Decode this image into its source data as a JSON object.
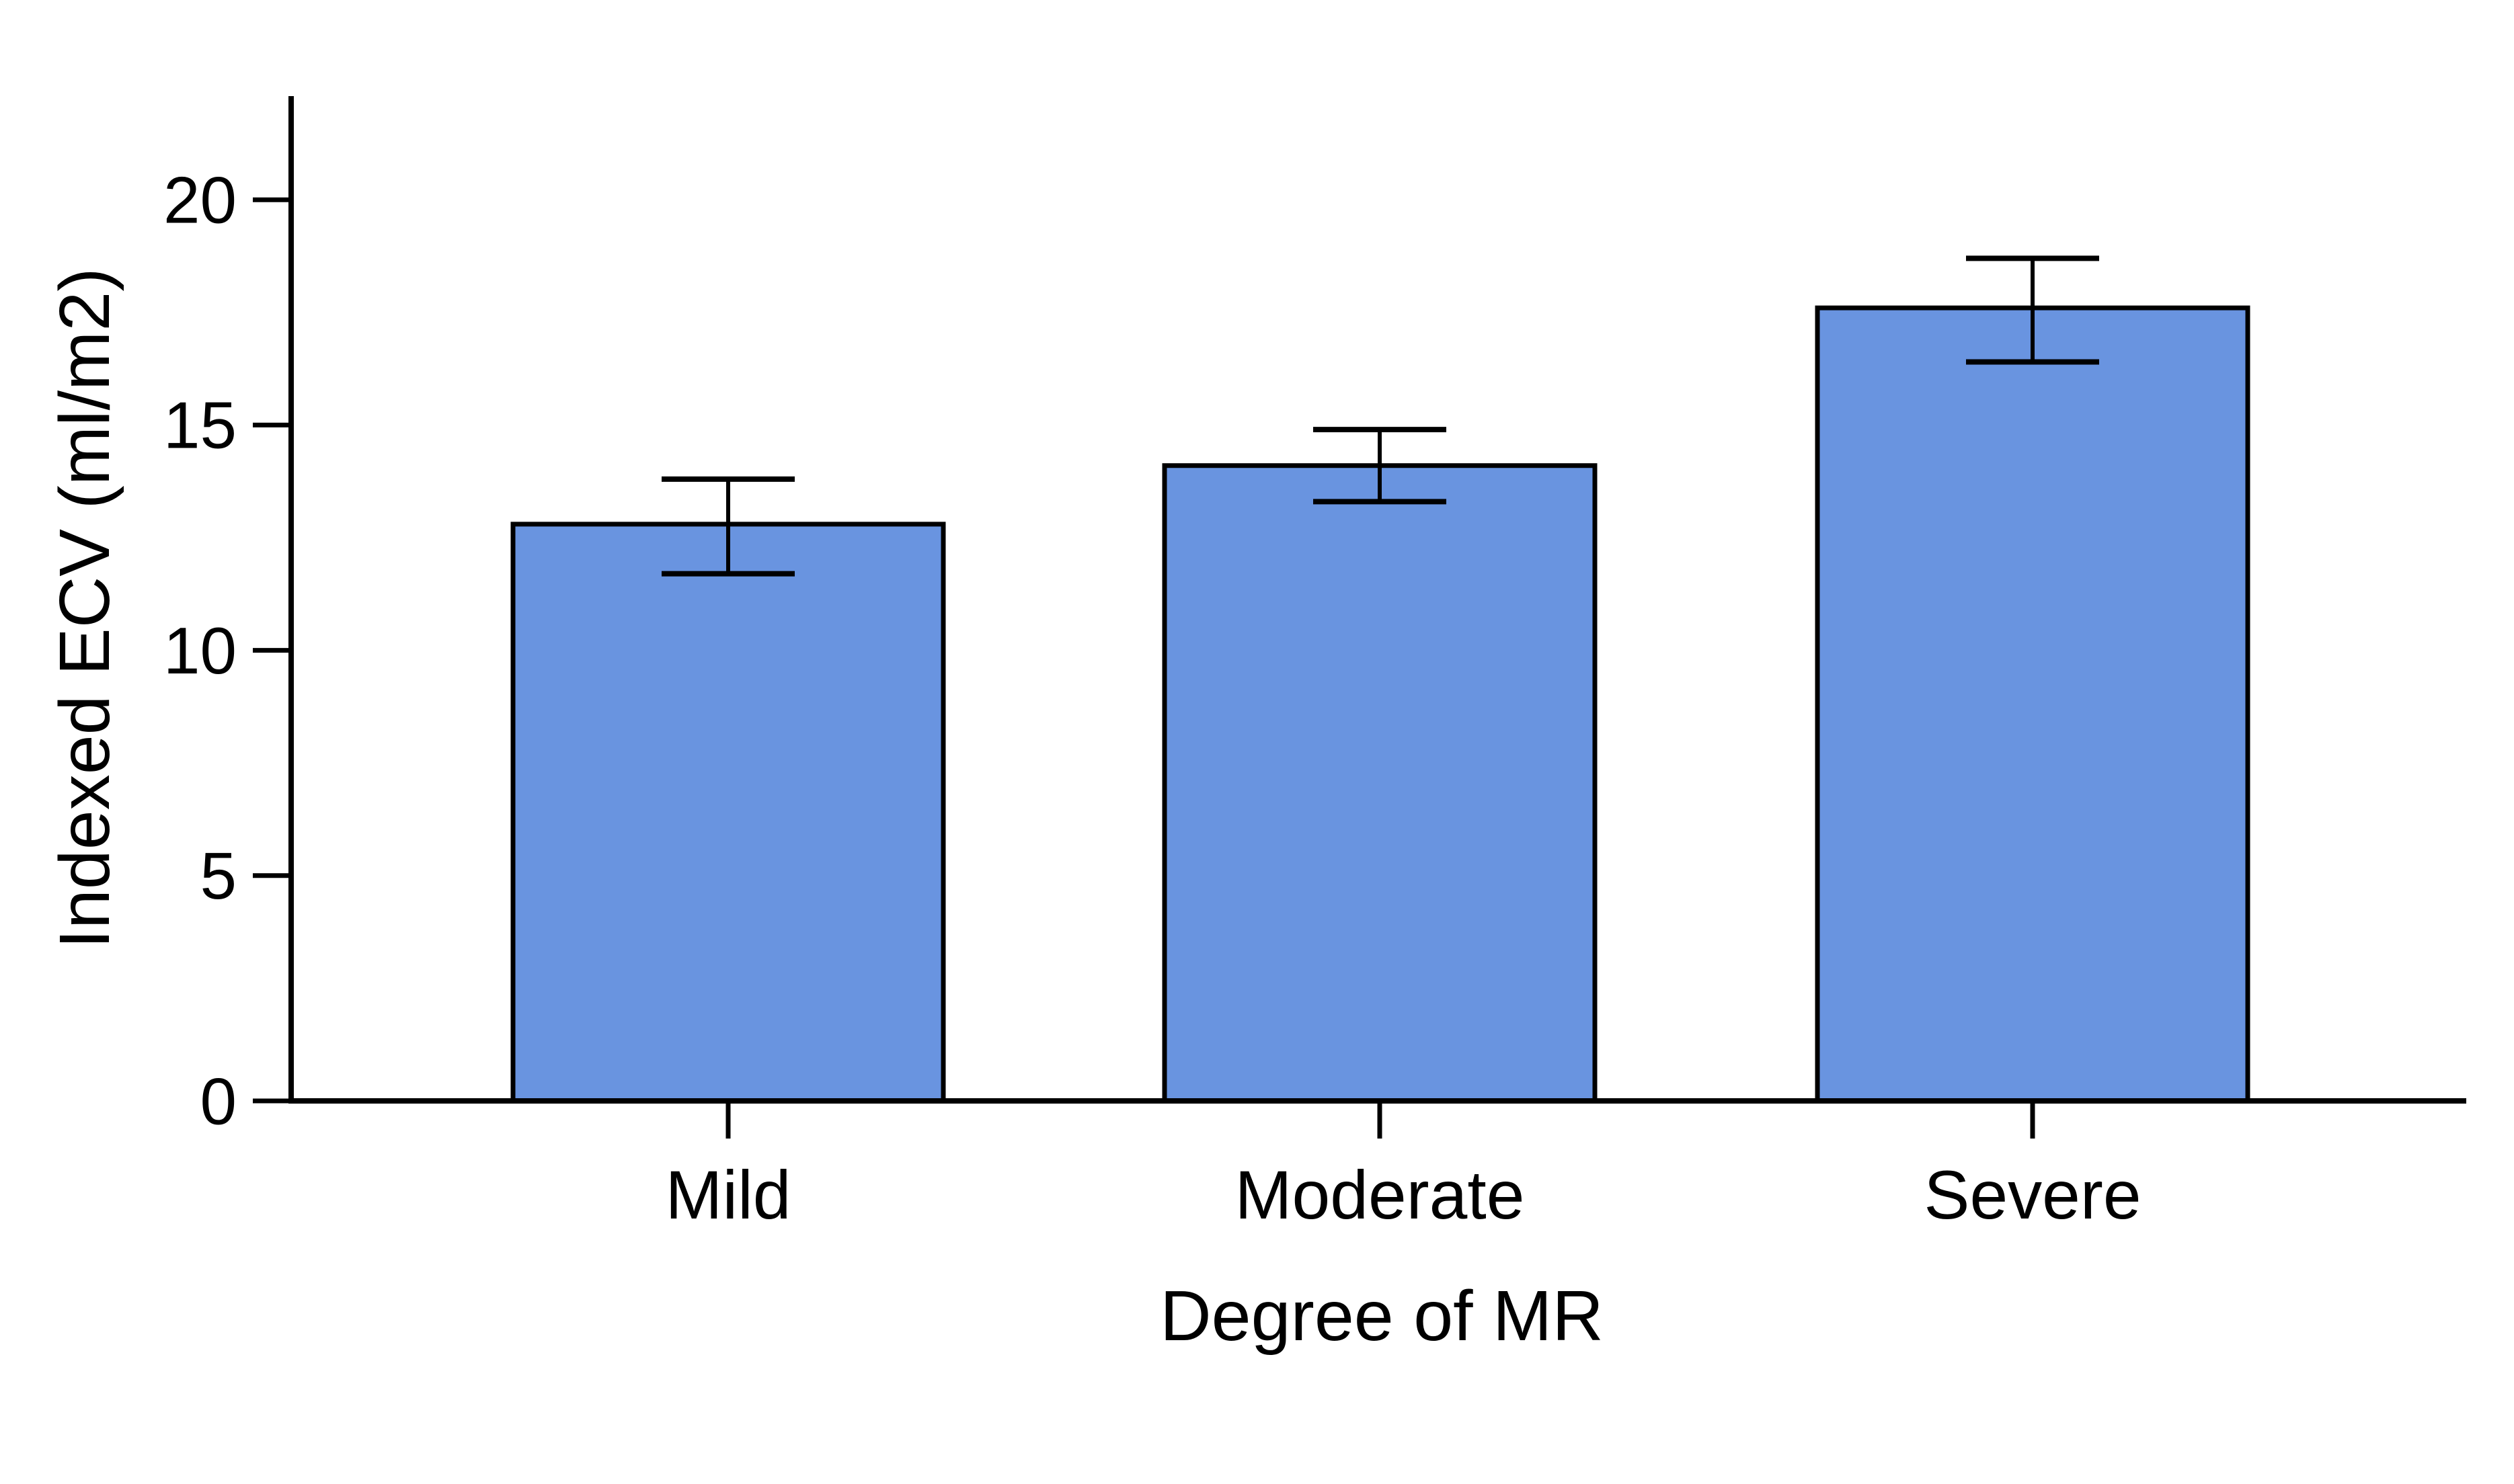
{
  "figure": {
    "background_color": "#ffffff",
    "text_color": "#000000"
  },
  "chart_data": {
    "type": "bar",
    "title": "",
    "xlabel": "Degree of MR",
    "ylabel": "Indexed ECV (ml/m2)",
    "categories": [
      "Mild",
      "Moderate",
      "Severe"
    ],
    "values": [
      12.8,
      14.1,
      17.6
    ],
    "error_low": [
      11.7,
      13.3,
      16.4
    ],
    "error_high": [
      13.8,
      14.9,
      18.7
    ],
    "yticks": [
      0,
      5,
      10,
      15,
      20
    ],
    "ylim": [
      0,
      22.3
    ],
    "grid": false,
    "legend": null,
    "bar_color": "#6994e0",
    "bar_border_color": "#000000",
    "axis_color": "#000000",
    "error_bar_color": "#000000"
  }
}
